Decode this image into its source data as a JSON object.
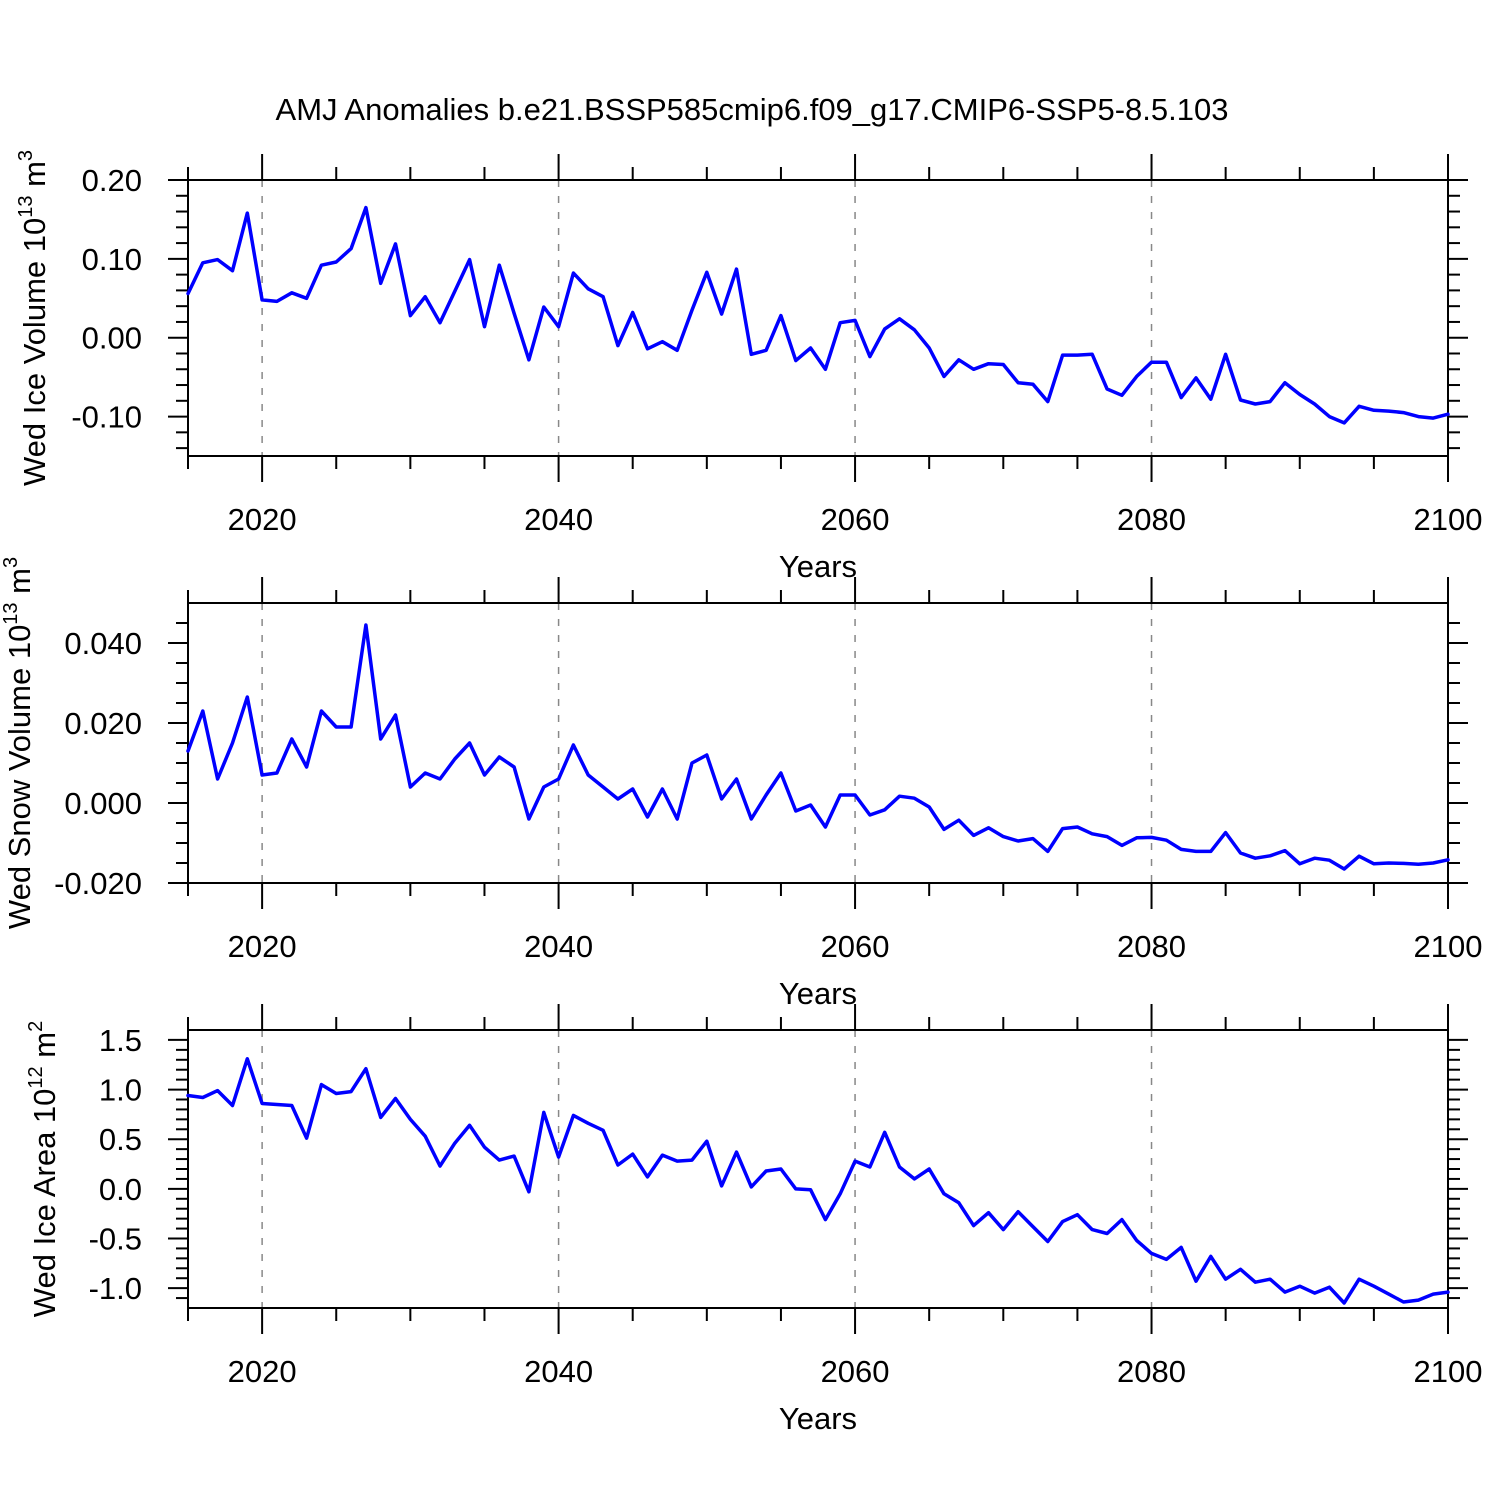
{
  "title": "AMJ Anomalies b.e21.BSSP585cmip6.f09_g17.CMIP6-SSP5-8.5.103",
  "colors": {
    "line": "#0000ff",
    "grid": "#888888",
    "frame": "#000000",
    "background": "#ffffff",
    "text": "#000000"
  },
  "chart_data": [
    {
      "type": "line",
      "panel": "wed-ice-volume",
      "title": "AMJ Anomalies b.e21.BSSP585cmip6.f09_g17.CMIP6-SSP5-8.5.103",
      "xlabel": "Years",
      "ylabel_text": "Wed Ice Volume 10^13 m^3",
      "ylabel_parts": {
        "base": "Wed Ice Volume 10",
        "exp": "13",
        "unit_base": " m",
        "unit_exp": "3"
      },
      "xlim": [
        2015,
        2100
      ],
      "ylim": [
        -0.15,
        0.2
      ],
      "xticks": [
        {
          "value": 2020,
          "label": "2020"
        },
        {
          "value": 2040,
          "label": "2040"
        },
        {
          "value": 2060,
          "label": "2060"
        },
        {
          "value": 2080,
          "label": "2080"
        },
        {
          "value": 2100,
          "label": "2100"
        }
      ],
      "xminor_step": 5,
      "yticks": [
        {
          "value": 0.2,
          "label": "0.20"
        },
        {
          "value": 0.1,
          "label": "0.10"
        },
        {
          "value": 0.0,
          "label": "0.00"
        },
        {
          "value": -0.1,
          "label": "-0.10"
        }
      ],
      "yminor_step": 0.02,
      "grid_years": [
        2020,
        2040,
        2060,
        2080
      ],
      "grid_style": "vertical-dashed",
      "legend": "none",
      "years": [
        2015,
        2016,
        2017,
        2018,
        2019,
        2020,
        2021,
        2022,
        2023,
        2024,
        2025,
        2026,
        2027,
        2028,
        2029,
        2030,
        2031,
        2032,
        2033,
        2034,
        2035,
        2036,
        2037,
        2038,
        2039,
        2040,
        2041,
        2042,
        2043,
        2044,
        2045,
        2046,
        2047,
        2048,
        2049,
        2050,
        2051,
        2052,
        2053,
        2054,
        2055,
        2056,
        2057,
        2058,
        2059,
        2060,
        2061,
        2062,
        2063,
        2064,
        2065,
        2066,
        2067,
        2068,
        2069,
        2070,
        2071,
        2072,
        2073,
        2074,
        2075,
        2076,
        2077,
        2078,
        2079,
        2080,
        2081,
        2082,
        2083,
        2084,
        2085,
        2086,
        2087,
        2088,
        2089,
        2090,
        2091,
        2092,
        2093,
        2094,
        2095,
        2096,
        2097,
        2098,
        2099,
        2100
      ],
      "values": [
        0.056,
        0.095,
        0.099,
        0.085,
        0.158,
        0.048,
        0.046,
        0.057,
        0.05,
        0.092,
        0.096,
        0.113,
        0.165,
        0.069,
        0.119,
        0.028,
        0.052,
        0.019,
        0.059,
        0.099,
        0.014,
        0.092,
        0.031,
        -0.028,
        0.039,
        0.014,
        0.082,
        0.062,
        0.052,
        -0.01,
        0.032,
        -0.014,
        -0.005,
        -0.016,
        0.035,
        0.083,
        0.03,
        0.087,
        -0.021,
        -0.016,
        0.028,
        -0.029,
        -0.013,
        -0.04,
        0.019,
        0.022,
        -0.024,
        0.011,
        0.024,
        0.01,
        -0.013,
        -0.049,
        -0.028,
        -0.04,
        -0.033,
        -0.034,
        -0.057,
        -0.059,
        -0.081,
        -0.022,
        -0.022,
        -0.021,
        -0.065,
        -0.073,
        -0.049,
        -0.031,
        -0.031,
        -0.076,
        -0.051,
        -0.078,
        -0.021,
        -0.079,
        -0.084,
        -0.081,
        -0.057,
        -0.072,
        -0.084,
        -0.1,
        -0.108,
        -0.087,
        -0.092,
        -0.093,
        -0.095,
        -0.1,
        -0.102,
        -0.097
      ]
    },
    {
      "type": "line",
      "panel": "wed-snow-volume",
      "title": "",
      "xlabel": "Years",
      "ylabel_text": "Wed Snow Volume 10^13 m^3",
      "ylabel_parts": {
        "base": "Wed Snow Volume 10",
        "exp": "13",
        "unit_base": " m",
        "unit_exp": "3"
      },
      "xlim": [
        2015,
        2100
      ],
      "ylim": [
        -0.02,
        0.05
      ],
      "xticks": [
        {
          "value": 2020,
          "label": "2020"
        },
        {
          "value": 2040,
          "label": "2040"
        },
        {
          "value": 2060,
          "label": "2060"
        },
        {
          "value": 2080,
          "label": "2080"
        },
        {
          "value": 2100,
          "label": "2100"
        }
      ],
      "xminor_step": 5,
      "yticks": [
        {
          "value": 0.04,
          "label": "0.040"
        },
        {
          "value": 0.02,
          "label": "0.020"
        },
        {
          "value": 0.0,
          "label": "0.000"
        },
        {
          "value": -0.02,
          "label": "-0.020"
        }
      ],
      "yminor_step": 0.005,
      "grid_years": [
        2020,
        2040,
        2060,
        2080
      ],
      "grid_style": "vertical-dashed",
      "legend": "none",
      "years": [
        2015,
        2016,
        2017,
        2018,
        2019,
        2020,
        2021,
        2022,
        2023,
        2024,
        2025,
        2026,
        2027,
        2028,
        2029,
        2030,
        2031,
        2032,
        2033,
        2034,
        2035,
        2036,
        2037,
        2038,
        2039,
        2040,
        2041,
        2042,
        2043,
        2044,
        2045,
        2046,
        2047,
        2048,
        2049,
        2050,
        2051,
        2052,
        2053,
        2054,
        2055,
        2056,
        2057,
        2058,
        2059,
        2060,
        2061,
        2062,
        2063,
        2064,
        2065,
        2066,
        2067,
        2068,
        2069,
        2070,
        2071,
        2072,
        2073,
        2074,
        2075,
        2076,
        2077,
        2078,
        2079,
        2080,
        2081,
        2082,
        2083,
        2084,
        2085,
        2086,
        2087,
        2088,
        2089,
        2090,
        2091,
        2092,
        2093,
        2094,
        2095,
        2096,
        2097,
        2098,
        2099,
        2100
      ],
      "values": [
        0.013,
        0.023,
        0.006,
        0.015,
        0.0265,
        0.007,
        0.0075,
        0.016,
        0.009,
        0.023,
        0.019,
        0.019,
        0.0445,
        0.016,
        0.022,
        0.004,
        0.0075,
        0.006,
        0.011,
        0.015,
        0.007,
        0.0115,
        0.009,
        -0.004,
        0.004,
        0.006,
        0.0145,
        0.007,
        0.004,
        0.001,
        0.0035,
        -0.0035,
        0.0035,
        -0.004,
        0.01,
        0.012,
        0.001,
        0.006,
        -0.004,
        0.002,
        0.0075,
        -0.002,
        -0.0005,
        -0.006,
        0.002,
        0.002,
        -0.003,
        -0.0017,
        0.0017,
        0.0012,
        -0.001,
        -0.0066,
        -0.0043,
        -0.0081,
        -0.0062,
        -0.0084,
        -0.0095,
        -0.0089,
        -0.0121,
        -0.0064,
        -0.006,
        -0.0077,
        -0.0084,
        -0.0106,
        -0.0087,
        -0.0086,
        -0.0093,
        -0.0116,
        -0.0121,
        -0.0121,
        -0.0074,
        -0.0125,
        -0.0138,
        -0.0132,
        -0.0119,
        -0.0152,
        -0.0138,
        -0.0143,
        -0.0165,
        -0.0133,
        -0.0152,
        -0.015,
        -0.0151,
        -0.0153,
        -0.015,
        -0.0142
      ]
    },
    {
      "type": "line",
      "panel": "wed-ice-area",
      "title": "",
      "xlabel": "Years",
      "ylabel_text": "Wed Ice Area 10^12 m^2",
      "ylabel_parts": {
        "base": "Wed Ice Area 10",
        "exp": "12",
        "unit_base": " m",
        "unit_exp": "2"
      },
      "xlim": [
        2015,
        2100
      ],
      "ylim": [
        -1.2,
        1.6
      ],
      "xticks": [
        {
          "value": 2020,
          "label": "2020"
        },
        {
          "value": 2040,
          "label": "2040"
        },
        {
          "value": 2060,
          "label": "2060"
        },
        {
          "value": 2080,
          "label": "2080"
        },
        {
          "value": 2100,
          "label": "2100"
        }
      ],
      "xminor_step": 5,
      "yticks": [
        {
          "value": 1.5,
          "label": "1.5"
        },
        {
          "value": 1.0,
          "label": "1.0"
        },
        {
          "value": 0.5,
          "label": "0.5"
        },
        {
          "value": 0.0,
          "label": "0.0"
        },
        {
          "value": -0.5,
          "label": "-0.5"
        },
        {
          "value": -1.0,
          "label": "-1.0"
        }
      ],
      "yminor_step": 0.1,
      "grid_years": [
        2020,
        2040,
        2060,
        2080
      ],
      "grid_style": "vertical-dashed",
      "legend": "none",
      "years": [
        2015,
        2016,
        2017,
        2018,
        2019,
        2020,
        2021,
        2022,
        2023,
        2024,
        2025,
        2026,
        2027,
        2028,
        2029,
        2030,
        2031,
        2032,
        2033,
        2034,
        2035,
        2036,
        2037,
        2038,
        2039,
        2040,
        2041,
        2042,
        2043,
        2044,
        2045,
        2046,
        2047,
        2048,
        2049,
        2050,
        2051,
        2052,
        2053,
        2054,
        2055,
        2056,
        2057,
        2058,
        2059,
        2060,
        2061,
        2062,
        2063,
        2064,
        2065,
        2066,
        2067,
        2068,
        2069,
        2070,
        2071,
        2072,
        2073,
        2074,
        2075,
        2076,
        2077,
        2078,
        2079,
        2080,
        2081,
        2082,
        2083,
        2084,
        2085,
        2086,
        2087,
        2088,
        2089,
        2090,
        2091,
        2092,
        2093,
        2094,
        2095,
        2096,
        2097,
        2098,
        2099,
        2100
      ],
      "values": [
        0.94,
        0.92,
        0.99,
        0.84,
        1.31,
        0.86,
        0.85,
        0.84,
        0.51,
        1.05,
        0.96,
        0.98,
        1.21,
        0.72,
        0.91,
        0.7,
        0.53,
        0.23,
        0.46,
        0.64,
        0.42,
        0.29,
        0.33,
        -0.03,
        0.77,
        0.32,
        0.74,
        0.66,
        0.59,
        0.24,
        0.35,
        0.12,
        0.34,
        0.28,
        0.29,
        0.48,
        0.03,
        0.37,
        0.02,
        0.18,
        0.2,
        0.0,
        -0.01,
        -0.31,
        -0.05,
        0.28,
        0.22,
        0.57,
        0.22,
        0.1,
        0.2,
        -0.05,
        -0.14,
        -0.37,
        -0.24,
        -0.41,
        -0.23,
        -0.38,
        -0.53,
        -0.33,
        -0.26,
        -0.41,
        -0.45,
        -0.31,
        -0.52,
        -0.65,
        -0.71,
        -0.59,
        -0.93,
        -0.68,
        -0.91,
        -0.81,
        -0.94,
        -0.91,
        -1.04,
        -0.98,
        -1.05,
        -0.99,
        -1.15,
        -0.91,
        -0.98,
        -1.06,
        -1.14,
        -1.12,
        -1.06,
        -1.04
      ]
    }
  ]
}
